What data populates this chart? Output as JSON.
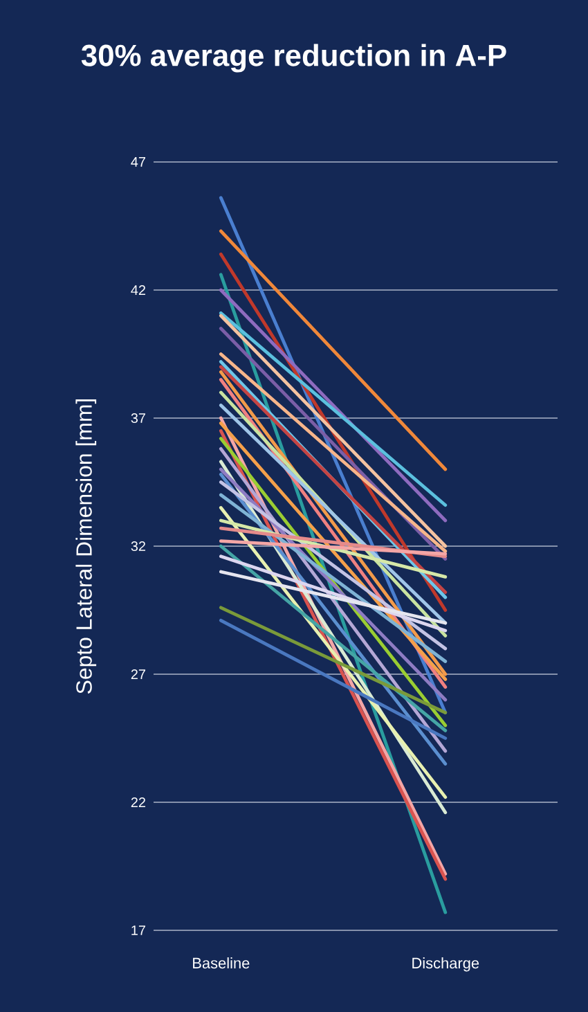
{
  "chart_data": {
    "type": "line",
    "title": "30% average reduction in A-P",
    "ylabel": "Septo Lateral Dimension [mm]",
    "categories": [
      "Baseline",
      "Discharge"
    ],
    "ylim": [
      17,
      47
    ],
    "yticks": [
      17,
      22,
      27,
      32,
      37,
      42,
      47
    ],
    "grid": "y",
    "marker": "none",
    "line_style": "solid",
    "series": [
      {
        "color": "#4a7fd0",
        "values": [
          45.6,
          25.5
        ]
      },
      {
        "color": "#f0883a",
        "values": [
          44.3,
          35.0
        ]
      },
      {
        "color": "#c0392b",
        "values": [
          43.4,
          29.5
        ]
      },
      {
        "color": "#2a9d9f",
        "values": [
          42.6,
          17.7
        ]
      },
      {
        "color": "#8e6bbf",
        "values": [
          42.0,
          33.0
        ]
      },
      {
        "color": "#5bc0de",
        "values": [
          41.1,
          33.6
        ]
      },
      {
        "color": "#f4c2a0",
        "values": [
          41.0,
          32.0
        ]
      },
      {
        "color": "#7b5ea7",
        "values": [
          40.5,
          31.5
        ]
      },
      {
        "color": "#f7b58a",
        "values": [
          39.5,
          31.8
        ]
      },
      {
        "color": "#6ec6e8",
        "values": [
          39.2,
          30.0
        ]
      },
      {
        "color": "#c44444",
        "values": [
          39.0,
          30.2
        ]
      },
      {
        "color": "#f29a4a",
        "values": [
          38.8,
          27.0
        ]
      },
      {
        "color": "#f08080",
        "values": [
          38.5,
          26.5
        ]
      },
      {
        "color": "#c9e3a0",
        "values": [
          38.0,
          28.5
        ]
      },
      {
        "color": "#9fc5e8",
        "values": [
          37.5,
          29.0
        ]
      },
      {
        "color": "#f4a6a6",
        "values": [
          37.0,
          19.2
        ]
      },
      {
        "color": "#f5a04a",
        "values": [
          36.8,
          26.8
        ]
      },
      {
        "color": "#d9534f",
        "values": [
          36.5,
          19.0
        ]
      },
      {
        "color": "#9acd32",
        "values": [
          36.2,
          25.0
        ]
      },
      {
        "color": "#b4a7d6",
        "values": [
          35.8,
          24.0
        ]
      },
      {
        "color": "#d9ead3",
        "values": [
          35.3,
          21.6
        ]
      },
      {
        "color": "#8e7cc3",
        "values": [
          35.0,
          26.0
        ]
      },
      {
        "color": "#5b8fd0",
        "values": [
          34.8,
          23.5
        ]
      },
      {
        "color": "#c3c3e5",
        "values": [
          34.5,
          28.0
        ]
      },
      {
        "color": "#7fb3d5",
        "values": [
          34.0,
          27.5
        ]
      },
      {
        "color": "#e8f0b0",
        "values": [
          33.5,
          22.2
        ]
      },
      {
        "color": "#d6e8a8",
        "values": [
          33.0,
          30.8
        ]
      },
      {
        "color": "#e58b8b",
        "values": [
          32.7,
          31.6
        ]
      },
      {
        "color": "#f4a6a6",
        "values": [
          32.2,
          31.7
        ]
      },
      {
        "color": "#45a5a5",
        "values": [
          32.0,
          24.8
        ]
      },
      {
        "color": "#dcd6f0",
        "values": [
          31.6,
          28.7
        ]
      },
      {
        "color": "#e6e6f0",
        "values": [
          31.0,
          29.0
        ]
      },
      {
        "color": "#7a9a3a",
        "values": [
          29.6,
          25.5
        ]
      },
      {
        "color": "#4a78c0",
        "values": [
          29.1,
          24.5
        ]
      }
    ]
  }
}
